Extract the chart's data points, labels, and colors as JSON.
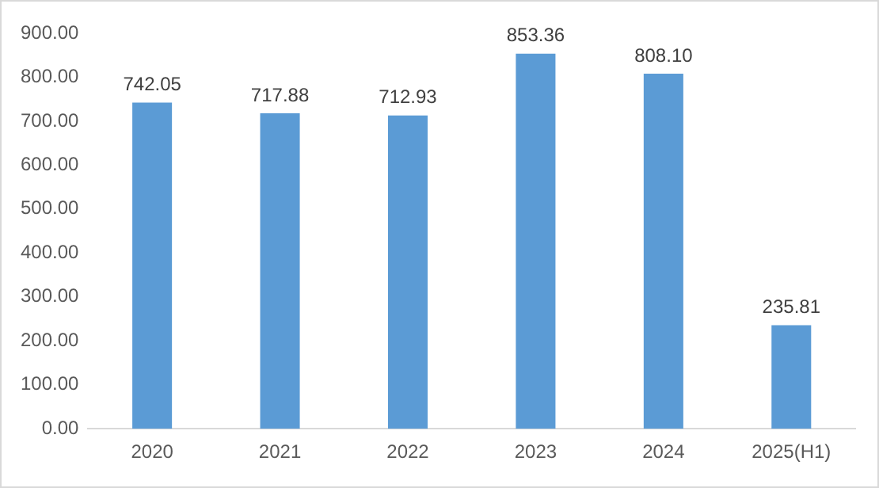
{
  "chart_data": {
    "type": "bar",
    "categories": [
      "2020",
      "2021",
      "2022",
      "2023",
      "2024",
      "2025(H1)"
    ],
    "values": [
      742.05,
      717.88,
      712.93,
      853.36,
      808.1,
      235.81
    ],
    "value_labels": [
      "742.05",
      "717.88",
      "712.93",
      "853.36",
      "808.10",
      "235.81"
    ],
    "color": "#5b9bd5",
    "ylim": [
      0,
      900
    ],
    "yticks": [
      {
        "value": 0,
        "label": "0.00"
      },
      {
        "value": 100,
        "label": "100.00"
      },
      {
        "value": 200,
        "label": "200.00"
      },
      {
        "value": 300,
        "label": "300.00"
      },
      {
        "value": 400,
        "label": "400.00"
      },
      {
        "value": 500,
        "label": "500.00"
      },
      {
        "value": 600,
        "label": "600.00"
      },
      {
        "value": 700,
        "label": "700.00"
      },
      {
        "value": 800,
        "label": "800.00"
      },
      {
        "value": 900,
        "label": "900.00"
      }
    ],
    "grid": false,
    "legend": false
  }
}
